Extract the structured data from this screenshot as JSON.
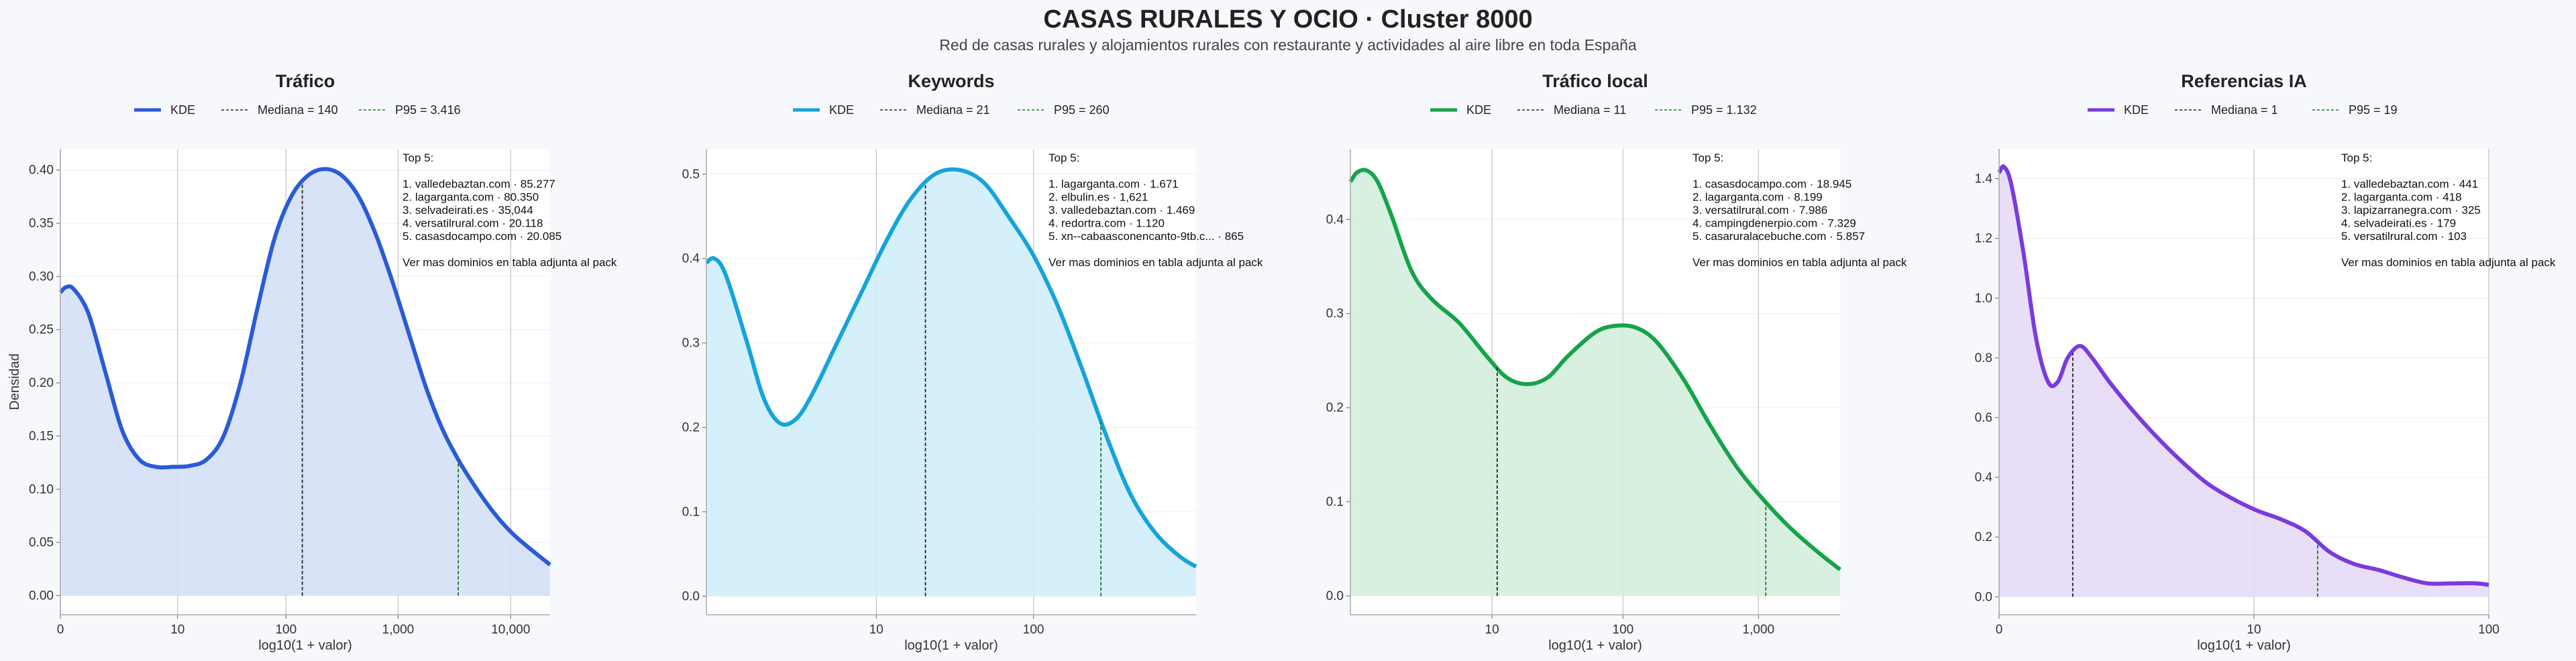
{
  "header": {
    "title": "CASAS RURALES Y OCIO · Cluster 8000",
    "subtitle": "Red de casas rurales y alojamientos rurales con restaurante y actividades al aire libre en toda España"
  },
  "common": {
    "ylabel": "Densidad",
    "xlabel": "log10(1 + valor)",
    "legend_kde": "KDE",
    "annotation_title": "Top 5:",
    "annotation_footer": "Ver mas dominios en tabla adjunta al pack",
    "median_color": "#222222",
    "p95_color": "#1a7a1a"
  },
  "chart_data": [
    {
      "type": "area",
      "title": "Tráfico",
      "color": "#2a5bd7",
      "fill": "#d5e0f7",
      "legend_median": "Mediana = 140",
      "legend_p95": "P95 = 3.416",
      "xlim": [
        0,
        4.35
      ],
      "ylim": [
        -0.018,
        0.42
      ],
      "x_ticks": [
        {
          "v": 0,
          "label": "0"
        },
        {
          "v": 1.041,
          "label": "10"
        },
        {
          "v": 2.004,
          "label": "100"
        },
        {
          "v": 3.0,
          "label": "1,000"
        },
        {
          "v": 4.0,
          "label": "10,000"
        }
      ],
      "y_ticks": [
        0.0,
        0.05,
        0.1,
        0.15,
        0.2,
        0.25,
        0.3,
        0.35,
        0.4
      ],
      "y_tick_labels": [
        "0.00",
        "0.05",
        "0.10",
        "0.15",
        "0.20",
        "0.25",
        "0.30",
        "0.35",
        "0.40"
      ],
      "median_x": 2.149,
      "p95_x": 3.534,
      "curve": [
        [
          0,
          0.285
        ],
        [
          0.05,
          0.29
        ],
        [
          0.12,
          0.288
        ],
        [
          0.25,
          0.265
        ],
        [
          0.4,
          0.21
        ],
        [
          0.55,
          0.155
        ],
        [
          0.7,
          0.128
        ],
        [
          0.85,
          0.121
        ],
        [
          1.0,
          0.121
        ],
        [
          1.15,
          0.122
        ],
        [
          1.3,
          0.128
        ],
        [
          1.45,
          0.15
        ],
        [
          1.6,
          0.2
        ],
        [
          1.75,
          0.27
        ],
        [
          1.9,
          0.335
        ],
        [
          2.05,
          0.375
        ],
        [
          2.2,
          0.395
        ],
        [
          2.35,
          0.401
        ],
        [
          2.5,
          0.395
        ],
        [
          2.65,
          0.375
        ],
        [
          2.8,
          0.34
        ],
        [
          2.95,
          0.295
        ],
        [
          3.1,
          0.245
        ],
        [
          3.25,
          0.195
        ],
        [
          3.4,
          0.155
        ],
        [
          3.55,
          0.125
        ],
        [
          3.7,
          0.1
        ],
        [
          3.85,
          0.078
        ],
        [
          4.0,
          0.06
        ],
        [
          4.15,
          0.046
        ],
        [
          4.35,
          0.029
        ]
      ],
      "top5": [
        "1. valledebaztan.com · 85.277",
        "2. lagarganta.com · 80.350",
        "3. selvadeirati.es · 35,044",
        "4. versatilrural.com · 20.118",
        "5. casasdocampo.com · 20.085"
      ]
    },
    {
      "type": "area",
      "title": "Keywords",
      "color": "#16a3dc",
      "fill": "#d1eefb",
      "legend_median": "Mediana = 21",
      "legend_p95": "P95 = 260",
      "xlim": [
        0,
        3.0
      ],
      "ylim": [
        -0.022,
        0.53
      ],
      "x_ticks": [
        {
          "v": 1.041,
          "label": "10"
        },
        {
          "v": 2.004,
          "label": "100"
        }
      ],
      "y_ticks": [
        0.0,
        0.1,
        0.2,
        0.3,
        0.4,
        0.5
      ],
      "y_tick_labels": [
        "0.0",
        "0.1",
        "0.2",
        "0.3",
        "0.4",
        "0.5"
      ],
      "median_x": 1.342,
      "p95_x": 2.417,
      "curve": [
        [
          0,
          0.395
        ],
        [
          0.05,
          0.4
        ],
        [
          0.12,
          0.38
        ],
        [
          0.25,
          0.3
        ],
        [
          0.35,
          0.235
        ],
        [
          0.45,
          0.205
        ],
        [
          0.55,
          0.21
        ],
        [
          0.65,
          0.24
        ],
        [
          0.8,
          0.3
        ],
        [
          0.95,
          0.36
        ],
        [
          1.1,
          0.42
        ],
        [
          1.25,
          0.47
        ],
        [
          1.4,
          0.5
        ],
        [
          1.55,
          0.505
        ],
        [
          1.7,
          0.49
        ],
        [
          1.85,
          0.45
        ],
        [
          2.0,
          0.405
        ],
        [
          2.15,
          0.345
        ],
        [
          2.3,
          0.27
        ],
        [
          2.45,
          0.19
        ],
        [
          2.6,
          0.12
        ],
        [
          2.75,
          0.075
        ],
        [
          2.9,
          0.047
        ],
        [
          3.0,
          0.035
        ]
      ],
      "top5": [
        "1. lagarganta.com · 1.671",
        "2. elbulin.es · 1,621",
        "3. valledebaztan.com · 1.469",
        "4. redortra.com · 1.120",
        "5. xn--cabaasconencanto-9tb.c... · 865"
      ]
    },
    {
      "type": "area",
      "title": "Tráfico local",
      "color": "#16a34a",
      "fill": "#d4eedd",
      "legend_median": "Mediana = 11",
      "legend_p95": "P95 = 1.132",
      "xlim": [
        0,
        3.6
      ],
      "ylim": [
        -0.02,
        0.475
      ],
      "x_ticks": [
        {
          "v": 1.041,
          "label": "10"
        },
        {
          "v": 2.004,
          "label": "100"
        },
        {
          "v": 3.0,
          "label": "1,000"
        }
      ],
      "y_ticks": [
        0.0,
        0.1,
        0.2,
        0.3,
        0.4
      ],
      "y_tick_labels": [
        "0.0",
        "0.1",
        "0.2",
        "0.3",
        "0.4"
      ],
      "median_x": 1.079,
      "p95_x": 3.054,
      "curve": [
        [
          0,
          0.44
        ],
        [
          0.05,
          0.45
        ],
        [
          0.12,
          0.452
        ],
        [
          0.2,
          0.44
        ],
        [
          0.3,
          0.405
        ],
        [
          0.45,
          0.345
        ],
        [
          0.6,
          0.315
        ],
        [
          0.8,
          0.29
        ],
        [
          1.0,
          0.255
        ],
        [
          1.15,
          0.232
        ],
        [
          1.3,
          0.225
        ],
        [
          1.45,
          0.232
        ],
        [
          1.6,
          0.255
        ],
        [
          1.8,
          0.28
        ],
        [
          1.95,
          0.287
        ],
        [
          2.1,
          0.285
        ],
        [
          2.25,
          0.27
        ],
        [
          2.45,
          0.23
        ],
        [
          2.65,
          0.18
        ],
        [
          2.85,
          0.135
        ],
        [
          3.05,
          0.1
        ],
        [
          3.25,
          0.07
        ],
        [
          3.45,
          0.045
        ],
        [
          3.6,
          0.028
        ]
      ],
      "top5": [
        "1. casasdocampo.com · 18.945",
        "2. lagarganta.com · 8.199",
        "3. versatilrural.com · 7.986",
        "4. campingdenerpio.com · 7.329",
        "5. casaruralacebuche.com · 5.857"
      ]
    },
    {
      "type": "area",
      "title": "Referencias IA",
      "color": "#7a3bdc",
      "fill": "#e5daf7",
      "legend_median": "Mediana = 1",
      "legend_p95": "P95 = 19",
      "xlim": [
        0,
        2.0
      ],
      "ylim": [
        -0.06,
        1.5
      ],
      "x_ticks": [
        {
          "v": 0,
          "label": "0"
        },
        {
          "v": 1.041,
          "label": "10"
        },
        {
          "v": 2.0,
          "label": "100"
        }
      ],
      "y_ticks": [
        0.0,
        0.2,
        0.4,
        0.6,
        0.8,
        1.0,
        1.2,
        1.4
      ],
      "y_tick_labels": [
        "0.0",
        "0.2",
        "0.4",
        "0.6",
        "0.8",
        "1.0",
        "1.2",
        "1.4"
      ],
      "median_x": 0.301,
      "p95_x": 1.301,
      "curve": [
        [
          0,
          1.42
        ],
        [
          0.02,
          1.44
        ],
        [
          0.05,
          1.38
        ],
        [
          0.1,
          1.15
        ],
        [
          0.15,
          0.87
        ],
        [
          0.2,
          0.72
        ],
        [
          0.24,
          0.72
        ],
        [
          0.28,
          0.8
        ],
        [
          0.33,
          0.84
        ],
        [
          0.38,
          0.8
        ],
        [
          0.45,
          0.72
        ],
        [
          0.55,
          0.62
        ],
        [
          0.65,
          0.53
        ],
        [
          0.75,
          0.45
        ],
        [
          0.85,
          0.38
        ],
        [
          0.95,
          0.33
        ],
        [
          1.05,
          0.29
        ],
        [
          1.15,
          0.26
        ],
        [
          1.25,
          0.22
        ],
        [
          1.35,
          0.15
        ],
        [
          1.45,
          0.11
        ],
        [
          1.55,
          0.09
        ],
        [
          1.65,
          0.065
        ],
        [
          1.75,
          0.045
        ],
        [
          1.85,
          0.045
        ],
        [
          1.95,
          0.045
        ],
        [
          2.0,
          0.04
        ]
      ],
      "top5": [
        "1. valledebaztan.com · 441",
        "2. lagarganta.com · 418",
        "3. lapizarranegra.com · 325",
        "4. selvadeirati.es · 179",
        "5. versatilrural.com · 103"
      ]
    }
  ]
}
